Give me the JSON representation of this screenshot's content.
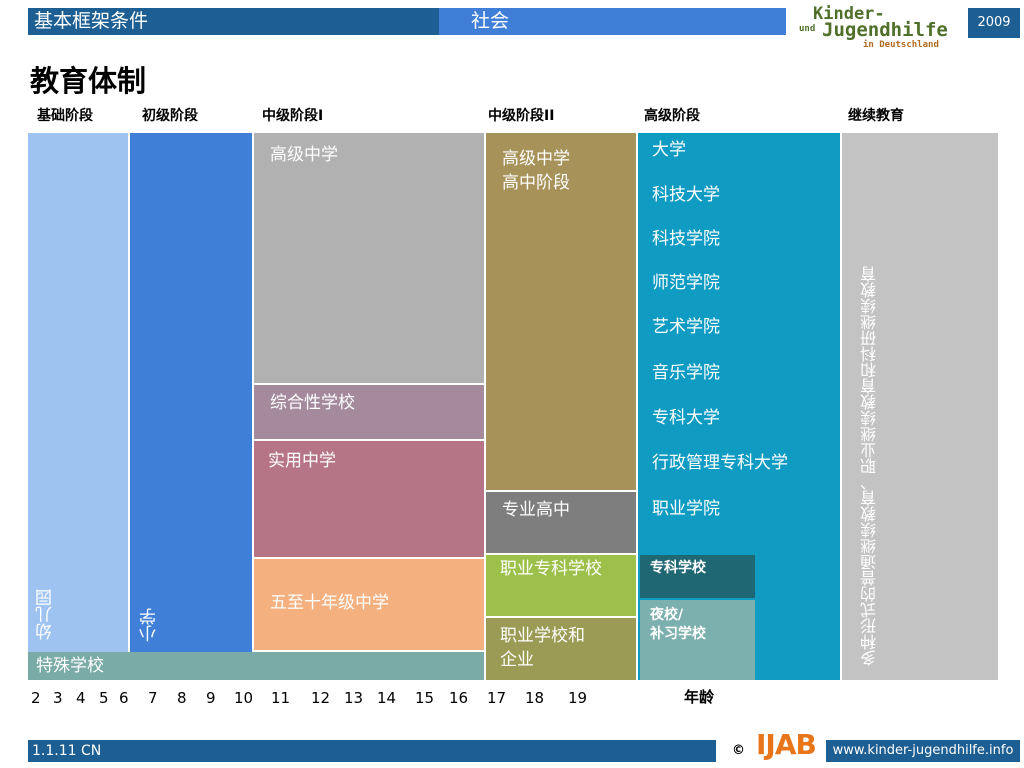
{
  "header": {
    "left_title": "基本框架条件",
    "center_title": "社会",
    "logo_line1": "Kinder-",
    "logo_und": "und",
    "logo_line2": "Jugendhilfe",
    "logo_line3": "in Deutschland",
    "year": "2009"
  },
  "page_title": "教育体制",
  "stages": [
    "基础阶段",
    "初级阶段",
    "中级阶段I",
    "中级阶段II",
    "高级阶段",
    "继续教育"
  ],
  "blocks": {
    "kindergarten": "幼儿园",
    "primary": "小学",
    "special": "特殊学校",
    "gymnasium": "高级中学",
    "comprehensive": "综合性学校",
    "realschule": "实用中学",
    "hauptschule": "五至十年级中学",
    "upper_gym_line1": "高级中学",
    "upper_gym_line2": "高中阶段",
    "fachoberschule": "专业高中",
    "berufsfachschule": "职业专科学校",
    "dual_line1": "职业学校和",
    "dual_line2": "企业",
    "fachschule": "专科学校",
    "abendschule_line1": "夜校/",
    "abendschule_line2": "补习学校",
    "continuing": "多种形式的普通继续教育、职业继续教育和科研继续教育"
  },
  "higher_ed": [
    "大学",
    "科技大学",
    "科技学院",
    "师范学院",
    "艺术学院",
    "音乐学院",
    "专科大学",
    "行政管理专科大学",
    "职业学院"
  ],
  "ages": [
    "2",
    "3",
    "4",
    "5",
    "6",
    "7",
    "8",
    "9",
    "10",
    "11",
    "12",
    "13",
    "14",
    "15",
    "16",
    "17",
    "18",
    "19"
  ],
  "age_label": "年龄",
  "footer": {
    "code": "1.1.11 CN",
    "copyright": "©",
    "ijab": "IJAB",
    "url": "www.kinder-jugendhilfe.info"
  },
  "colors": {
    "header_blue": "#1d5e93",
    "header_light_blue": "#3f7fd8",
    "kindergarten": "#9fc3f1",
    "primary": "#3f7fd8",
    "gymnasium": "#b1b1b1",
    "comprehensive": "#a48a9c",
    "realschule": "#b67487",
    "hauptschule": "#f4b07f",
    "special": "#7aaba7",
    "upper_gym": "#a7925a",
    "fachoberschule": "#7e7e7e",
    "berufsfachschule": "#9dc04a",
    "dual": "#9b9b55",
    "higher_ed": "#109bc3",
    "fachschule": "#1f6873",
    "abendschule": "#7bb0ae",
    "continuing": "#c3c3c3"
  }
}
